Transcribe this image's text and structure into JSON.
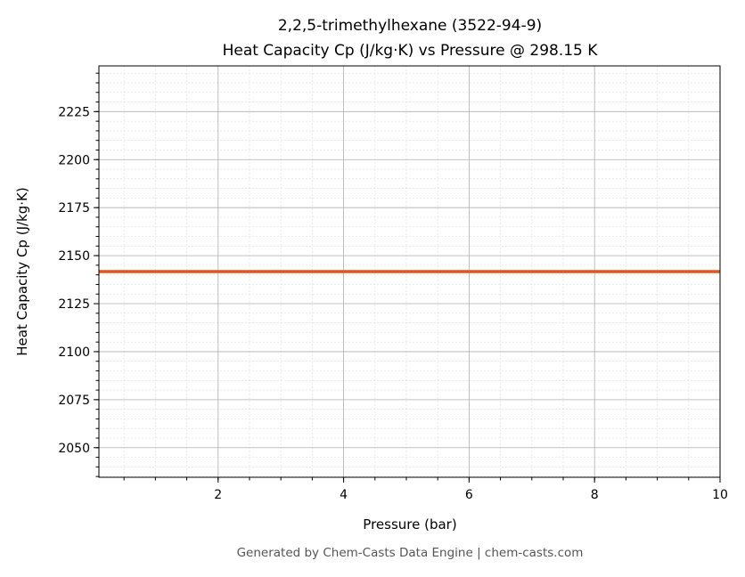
{
  "chart_data": {
    "type": "line",
    "title": "2,2,5-trimethylhexane (3522-94-9)",
    "subtitle": "Heat Capacity Cp (J/kg·K) vs Pressure @ 298.15 K",
    "xlabel": "Pressure (bar)",
    "ylabel": "Heat Capacity Cp (J/kg·K)",
    "xlim": [
      0.1,
      10
    ],
    "ylim": [
      2034.6,
      2248.8
    ],
    "xticks": [
      2,
      4,
      6,
      8,
      10
    ],
    "yticks": [
      2050,
      2075,
      2100,
      2125,
      2150,
      2175,
      2200,
      2225
    ],
    "x_minor_step": 0.5,
    "y_minor_step": 5,
    "grid": true,
    "series": [
      {
        "x": [
          0.1,
          10
        ],
        "y": [
          2141.7,
          2141.7
        ],
        "color": "#e0541f"
      }
    ]
  },
  "footer": "Generated by Chem-Casts Data Engine | chem-casts.com"
}
